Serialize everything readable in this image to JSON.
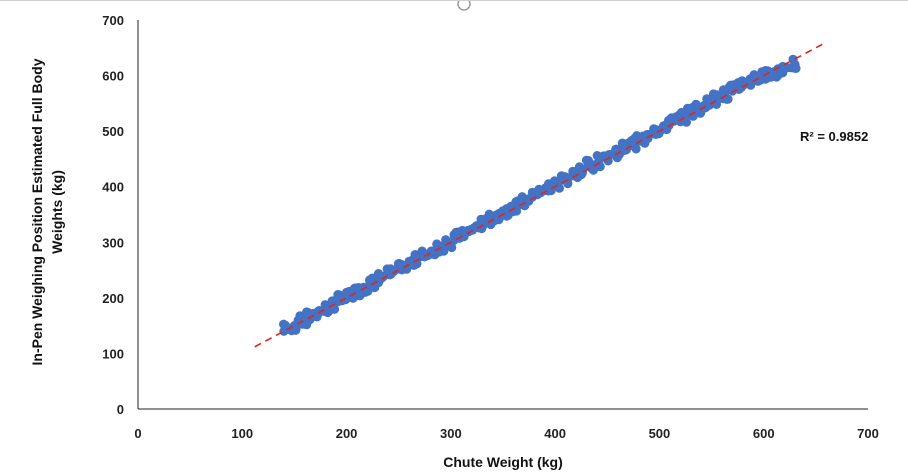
{
  "chart_data": {
    "type": "scatter",
    "title": "",
    "xlabel": "Chute Weight (kg)",
    "ylabel_lines": [
      "In-Pen Weighing Position Estimated Full Body",
      "Weights (kg)"
    ],
    "xlim": [
      0,
      700
    ],
    "ylim": [
      0,
      700
    ],
    "xticks": [
      0,
      100,
      200,
      300,
      400,
      500,
      600,
      700
    ],
    "yticks": [
      0,
      100,
      200,
      300,
      400,
      500,
      600,
      700
    ],
    "grid": false,
    "legend": "none",
    "annotation": "R² = 0.9852",
    "series": [
      {
        "x": [
          143,
          150,
          158,
          165,
          172,
          180,
          188,
          195,
          203,
          210,
          218,
          226,
          234,
          242,
          250,
          258,
          266,
          274,
          282,
          290,
          298,
          306,
          314,
          322,
          330,
          338,
          346,
          354,
          362,
          370,
          378,
          386,
          394,
          402,
          410,
          418,
          426,
          434,
          442,
          450,
          458,
          466,
          474,
          482,
          490,
          498,
          506,
          514,
          522,
          530,
          538,
          546,
          554,
          562,
          570,
          578,
          586,
          594,
          602,
          610,
          620,
          630
        ],
        "y": [
          145,
          150,
          158,
          166,
          174,
          181,
          189,
          196,
          204,
          211,
          219,
          227,
          236,
          244,
          252,
          260,
          268,
          276,
          284,
          292,
          300,
          309,
          317,
          325,
          333,
          341,
          349,
          357,
          365,
          373,
          381,
          389,
          398,
          406,
          414,
          422,
          430,
          438,
          446,
          454,
          462,
          470,
          478,
          486,
          494,
          502,
          510,
          518,
          526,
          534,
          542,
          550,
          558,
          566,
          574,
          582,
          590,
          596,
          600,
          607,
          614,
          620
        ],
        "spread": 10,
        "color": "#4472C4"
      }
    ],
    "trendline": {
      "x": [
        112,
        660
      ],
      "y": [
        112,
        660
      ],
      "color": "#E0251B",
      "style": "dashed"
    }
  }
}
